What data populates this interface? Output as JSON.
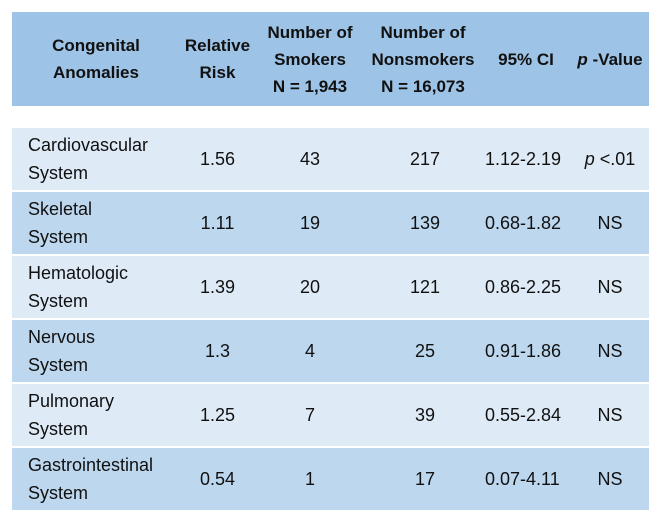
{
  "header": {
    "col1_line1": "Congenital",
    "col1_line2": "Anomalies",
    "col2_line1": "Relative",
    "col2_line2": "Risk",
    "col3_line1": "Number of",
    "col3_line2": "Smokers",
    "col3_line3": "N = 1,943",
    "col4_line1": "Number of",
    "col4_line2": "Nonsmokers",
    "col4_line3": "N = 16,073",
    "col5": "95% CI",
    "col6_p": "p",
    "col6_rest": " -Value"
  },
  "rows": [
    {
      "line1": "Cardiovascular",
      "line2": "System",
      "rr": "1.56",
      "smokers": "43",
      "nonsmokers": "217",
      "ci": "1.12-2.19",
      "p_italic": "p",
      "p_rest": " <.01"
    },
    {
      "line1": "Skeletal",
      "line2": "System",
      "rr": "1.11",
      "smokers": "19",
      "nonsmokers": "139",
      "ci": "0.68-1.82",
      "p_italic": "",
      "p_rest": "NS"
    },
    {
      "line1": "Hematologic",
      "line2": "System",
      "rr": "1.39",
      "smokers": "20",
      "nonsmokers": "121",
      "ci": "0.86-2.25",
      "p_italic": "",
      "p_rest": "NS"
    },
    {
      "line1": "Nervous",
      "line2": "System",
      "rr": "1.3",
      "smokers": "4",
      "nonsmokers": "25",
      "ci": "0.91-1.86",
      "p_italic": "",
      "p_rest": "NS"
    },
    {
      "line1": "Pulmonary",
      "line2": "System",
      "rr": "1.25",
      "smokers": "7",
      "nonsmokers": "39",
      "ci": "0.55-2.84",
      "p_italic": "",
      "p_rest": "NS"
    },
    {
      "line1": "Gastrointestinal",
      "line2": "System",
      "rr": "0.54",
      "smokers": "1",
      "nonsmokers": "17",
      "ci": "0.07-4.11",
      "p_italic": "",
      "p_rest": "NS"
    }
  ],
  "colors": {
    "header_bg": "#9dc3e6",
    "row_light": "#deebf7",
    "row_dark": "#bdd7ee"
  }
}
